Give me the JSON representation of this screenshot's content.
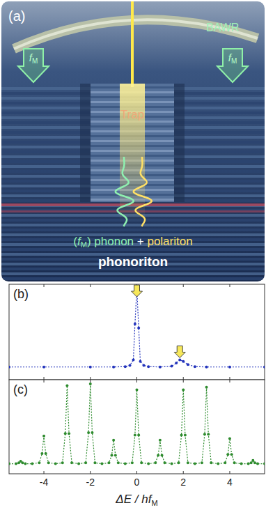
{
  "illustration": {
    "panel_label": "(a)",
    "resonator": "BAWR",
    "trap": "Trap",
    "frequency": {
      "open": "(",
      "symbol": "f",
      "subscript": "M",
      "close": ")"
    },
    "phonon": "phonon",
    "plus": "+",
    "polariton": "polariton",
    "result": "phonoriton"
  },
  "chart_data": [
    {
      "type": "line",
      "title": "(b)",
      "color": "#2233bb",
      "marker": "circle",
      "line_style": "dotted",
      "x": [
        -5.5,
        -4,
        -2,
        -1,
        -0.5,
        -0.3,
        -0.15,
        -0.08,
        0,
        0.08,
        0.15,
        0.3,
        0.5,
        1,
        1.5,
        1.7,
        1.85,
        2.0,
        2.2,
        2.5,
        3,
        4,
        5.5
      ],
      "values": [
        0.01,
        0.01,
        0.01,
        0.01,
        0.015,
        0.03,
        0.1,
        0.55,
        1.0,
        0.5,
        0.08,
        0.03,
        0.015,
        0.01,
        0.02,
        0.06,
        0.1,
        0.08,
        0.04,
        0.015,
        0.01,
        0.01,
        0.01
      ],
      "arrows_x": [
        0,
        1.85
      ],
      "xlim": [
        -5.5,
        5.5
      ],
      "xticks": [
        -4,
        -2,
        0,
        2,
        4
      ],
      "ylim": [
        -0.15,
        1.05
      ],
      "yticks": [],
      "tick_labels": false
    },
    {
      "type": "line",
      "title": "(c)",
      "color": "#2e8b2e",
      "marker": "circle",
      "line_style": "dotted",
      "xlabel": {
        "text": "ΔE / hf",
        "subscript": "M"
      },
      "x": [
        -5.5,
        -5.2,
        -5.08,
        -5,
        -4.92,
        -4.8,
        -4.5,
        -4.2,
        -4.08,
        -4,
        -3.92,
        -3.8,
        -3.5,
        -3.2,
        -3.08,
        -3,
        -2.92,
        -2.8,
        -2.5,
        -2.2,
        -2.08,
        -2,
        -1.92,
        -1.8,
        -1.5,
        -1.2,
        -1.08,
        -1,
        -0.92,
        -0.8,
        -0.5,
        -0.2,
        -0.08,
        0,
        0.08,
        0.2,
        0.5,
        0.8,
        0.92,
        1,
        1.08,
        1.2,
        1.5,
        1.8,
        1.92,
        2,
        2.08,
        2.2,
        2.5,
        2.8,
        2.92,
        3,
        3.08,
        3.2,
        3.5,
        3.8,
        3.92,
        4,
        4.08,
        4.2,
        4.5,
        4.8,
        4.92,
        5,
        5.08,
        5.2,
        5.5
      ],
      "values": [
        0.02,
        0.02,
        0.03,
        0.05,
        0.03,
        0.02,
        0.02,
        0.03,
        0.14,
        0.35,
        0.14,
        0.03,
        0.02,
        0.03,
        0.38,
        0.95,
        0.38,
        0.03,
        0.02,
        0.03,
        0.39,
        0.97,
        0.39,
        0.03,
        0.02,
        0.03,
        0.12,
        0.3,
        0.12,
        0.03,
        0.02,
        0.03,
        0.36,
        0.9,
        0.36,
        0.03,
        0.02,
        0.03,
        0.12,
        0.3,
        0.12,
        0.03,
        0.02,
        0.03,
        0.36,
        0.9,
        0.36,
        0.03,
        0.02,
        0.03,
        0.37,
        0.93,
        0.37,
        0.03,
        0.02,
        0.03,
        0.13,
        0.32,
        0.13,
        0.03,
        0.02,
        0.02,
        0.03,
        0.06,
        0.03,
        0.02,
        0.02
      ],
      "xlim": [
        -5.5,
        5.5
      ],
      "xticks": [
        -4,
        -2,
        0,
        2,
        4
      ],
      "ylim": [
        -0.1,
        1.02
      ],
      "yticks": [],
      "tick_labels": "x"
    }
  ]
}
